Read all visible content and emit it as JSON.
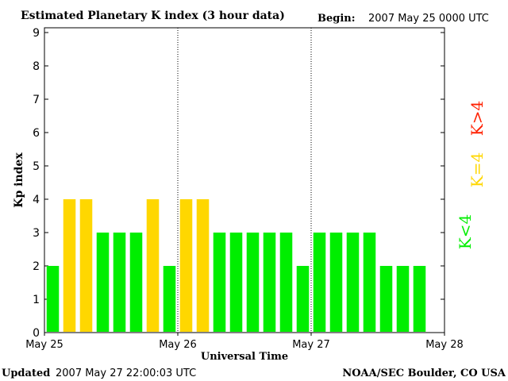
{
  "chart_data": {
    "type": "bar",
    "title": "Estimated Planetary K index (3 hour data)",
    "begin_label": "Begin:",
    "begin_value": "2007 May 25 0000 UTC",
    "xlabel": "Universal Time",
    "ylabel": "Kp index",
    "ylim": [
      0,
      9
    ],
    "y_ticks": [
      "0",
      "1",
      "2",
      "3",
      "4",
      "5",
      "6",
      "7",
      "8",
      "9"
    ],
    "x_tick_labels": [
      "May 25",
      "May 26",
      "May 27",
      "May 28"
    ],
    "bars_per_day": 8,
    "days": 3,
    "values": [
      2,
      4,
      4,
      3,
      3,
      3,
      4,
      2,
      4,
      4,
      3,
      3,
      3,
      3,
      3,
      2,
      3,
      3,
      3,
      3,
      2,
      2,
      2
    ],
    "grid": false,
    "day_separators": "dotted vertical lines at day boundaries",
    "legend": {
      "placement": "right",
      "entries": [
        {
          "label": "K<4",
          "color": "#00ee00"
        },
        {
          "label": "K=4",
          "color": "#ffd700"
        },
        {
          "label": "K>4",
          "color": "#ff2000"
        }
      ]
    }
  },
  "footer": {
    "updated_label": "Updated",
    "updated_value": "2007 May 27 22:00:03 UTC",
    "source": "NOAA/SEC Boulder, CO USA"
  },
  "colors": {
    "low": "#00ee00",
    "equal": "#ffd700",
    "high": "#ff2000"
  }
}
